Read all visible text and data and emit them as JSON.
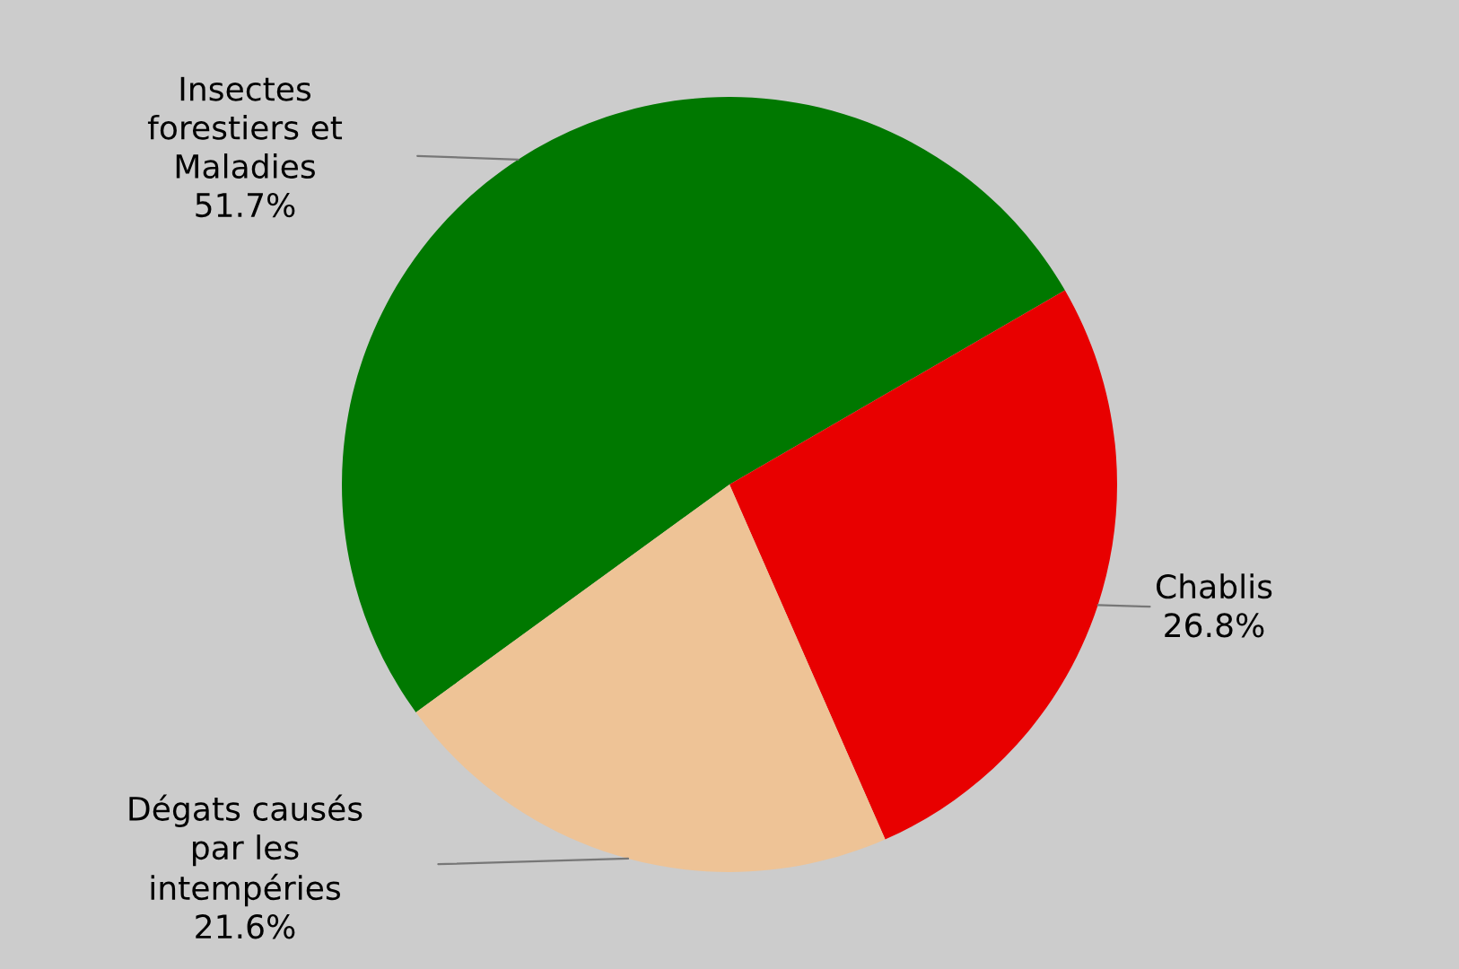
{
  "chart_data": {
    "type": "pie",
    "categories": [
      "Insectes\nforestiers et\nMaladies",
      "Chablis",
      "Dégats causés\npar les\nintempéries"
    ],
    "values": [
      51.7,
      26.8,
      21.6
    ],
    "value_labels": [
      "51.7%",
      "26.8%",
      "21.6%"
    ],
    "colors": [
      "#007800",
      "#e80000",
      "#eec396"
    ],
    "legend": false
  }
}
